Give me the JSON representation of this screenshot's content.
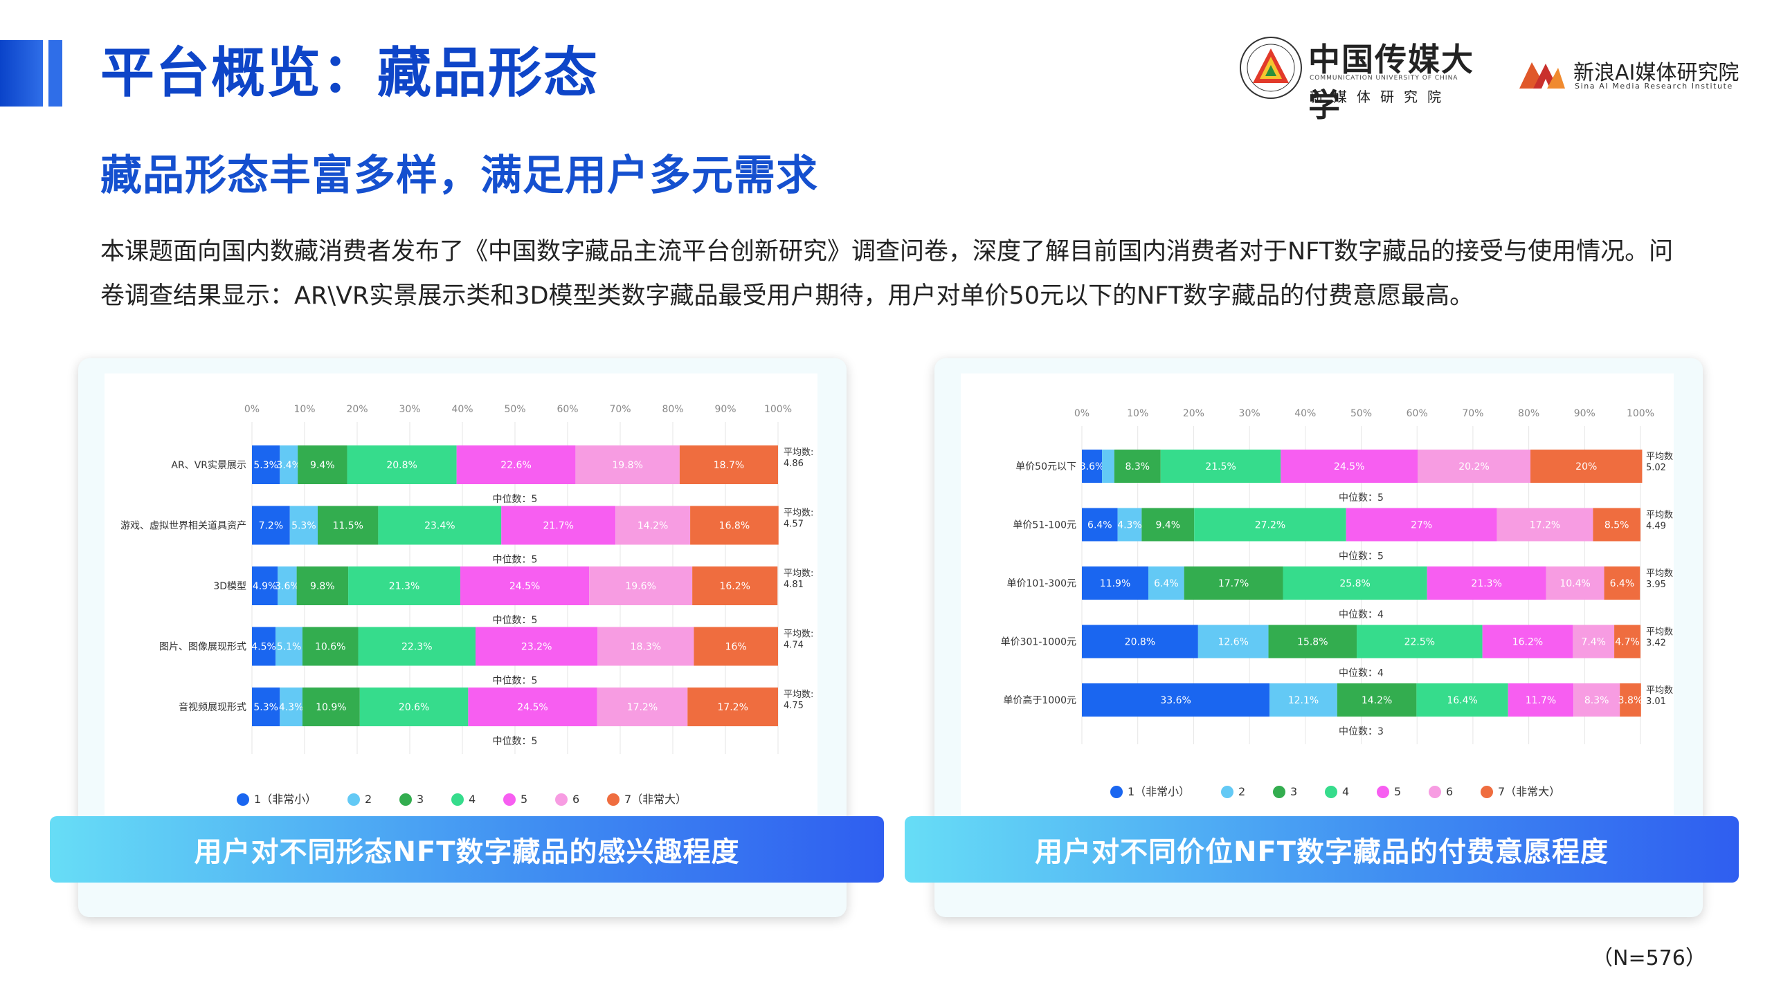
{
  "header": {
    "title": "平台概览：藏品形态",
    "logo_cuc": {
      "title": "中国传媒大学",
      "english": "COMMUNICATION UNIVERSITY OF CHINA",
      "sub": "新媒体研究院"
    },
    "logo_sina": {
      "name": "新浪AI媒体研究院",
      "english": "Sina AI Media Research Institute"
    }
  },
  "subtitle": "藏品形态丰富多样，满足用户多元需求",
  "intro": "本课题面向国内数藏消费者发布了《中国数字藏品主流平台创新研究》调查问卷，深度了解目前国内消费者对于NFT数字藏品的接受与使用情况。问卷调查结果显示：AR\\VR实景展示类和3D模型类数字藏品最受用户期待，用户对单价50元以下的NFT数字藏品的付费意愿最高。",
  "sample_note": "（N=576）",
  "colors": [
    "#1a66f0",
    "#63c9f5",
    "#33ad4f",
    "#36dc8c",
    "#f75ef1",
    "#f79ce2",
    "#ef6d3f"
  ],
  "chart_data": [
    {
      "type": "bar",
      "orientation": "horizontal",
      "stacked": true,
      "caption": "用户对不同形态NFT数字藏品的感兴趣程度",
      "x_ticks": [
        "0%",
        "10%",
        "20%",
        "30%",
        "40%",
        "50%",
        "60%",
        "70%",
        "80%",
        "90%",
        "100%"
      ],
      "xlim": [
        0,
        100
      ],
      "categories": [
        "AR、VR实景展示",
        "游戏、虚拟世界相关道具资产",
        "3D模型",
        "图片、图像展现形式",
        "音视频展现形式"
      ],
      "series": [
        {
          "name": "1（非常小）",
          "values": [
            5.3,
            7.2,
            4.9,
            4.5,
            5.3
          ]
        },
        {
          "name": "2",
          "values": [
            3.4,
            5.3,
            3.6,
            5.1,
            4.3
          ]
        },
        {
          "name": "3",
          "values": [
            9.4,
            11.5,
            9.8,
            10.6,
            10.9
          ]
        },
        {
          "name": "4",
          "values": [
            20.8,
            23.4,
            21.3,
            22.3,
            20.6
          ]
        },
        {
          "name": "5",
          "values": [
            22.6,
            21.7,
            24.5,
            23.2,
            24.5
          ]
        },
        {
          "name": "6",
          "values": [
            19.8,
            14.2,
            19.6,
            18.3,
            17.2
          ]
        },
        {
          "name": "7（非常大）",
          "values": [
            18.7,
            16.8,
            16.2,
            16,
            17.2
          ]
        }
      ],
      "value_labels": [
        [
          "5.3%",
          "3.4%",
          "9.4%",
          "20.8%",
          "22.6%",
          "19.8%",
          "18.7%"
        ],
        [
          "7.2%",
          "5.3%",
          "11.5%",
          "23.4%",
          "21.7%",
          "14.2%",
          "16.8%"
        ],
        [
          "4.9%",
          "3.6%",
          "9.8%",
          "21.3%",
          "24.5%",
          "19.6%",
          "16.2%"
        ],
        [
          "4.5%",
          "5.1%",
          "10.6%",
          "22.3%",
          "23.2%",
          "18.3%",
          "16%"
        ],
        [
          "5.3%",
          "4.3%",
          "10.9%",
          "20.6%",
          "24.5%",
          "17.2%",
          "17.2%"
        ]
      ],
      "mean_label": "平均数:",
      "means": [
        "4.86",
        "4.57",
        "4.81",
        "4.74",
        "4.75"
      ],
      "median_labels": [
        "中位数：5",
        "中位数：5",
        "中位数：5",
        "中位数：5",
        "中位数：5"
      ],
      "legend_position": "bottom",
      "grid": true
    },
    {
      "type": "bar",
      "orientation": "horizontal",
      "stacked": true,
      "caption": "用户对不同价位NFT数字藏品的付费意愿程度",
      "x_ticks": [
        "0%",
        "10%",
        "20%",
        "30%",
        "40%",
        "50%",
        "60%",
        "70%",
        "80%",
        "90%",
        "100%"
      ],
      "xlim": [
        0,
        100
      ],
      "categories": [
        "单价50元以下",
        "单价51-100元",
        "单价101-300元",
        "单价301-1000元",
        "单价高于1000元"
      ],
      "series": [
        {
          "name": "1（非常小）",
          "values": [
            3.6,
            6.4,
            11.9,
            20.8,
            33.6
          ]
        },
        {
          "name": "2",
          "values": [
            2.2,
            4.3,
            6.4,
            12.6,
            12.1
          ]
        },
        {
          "name": "3",
          "values": [
            8.3,
            9.4,
            17.7,
            15.8,
            14.2
          ]
        },
        {
          "name": "4",
          "values": [
            21.5,
            27.2,
            25.8,
            22.5,
            16.4
          ]
        },
        {
          "name": "5",
          "values": [
            24.5,
            27,
            21.3,
            16.2,
            11.7
          ]
        },
        {
          "name": "6",
          "values": [
            20.2,
            17.2,
            10.4,
            7.4,
            8.3
          ]
        },
        {
          "name": "7（非常大）",
          "values": [
            20,
            8.5,
            6.4,
            4.7,
            3.8
          ]
        }
      ],
      "value_labels": [
        [
          "3.6%",
          "",
          "8.3%",
          "21.5%",
          "24.5%",
          "20.2%",
          "20%"
        ],
        [
          "6.4%",
          "4.3%",
          "9.4%",
          "27.2%",
          "27%",
          "17.2%",
          "8.5%"
        ],
        [
          "11.9%",
          "6.4%",
          "17.7%",
          "25.8%",
          "21.3%",
          "10.4%",
          "6.4%"
        ],
        [
          "20.8%",
          "12.6%",
          "15.8%",
          "22.5%",
          "16.2%",
          "7.4%",
          "4.7%"
        ],
        [
          "33.6%",
          "12.1%",
          "14.2%",
          "16.4%",
          "11.7%",
          "8.3%",
          "3.8%"
        ]
      ],
      "mean_label": "平均数:",
      "means": [
        "5.02",
        "4.49",
        "3.95",
        "3.42",
        "3.01"
      ],
      "median_labels": [
        "中位数：5",
        "中位数：5",
        "中位数：4",
        "中位数：4",
        "中位数：3"
      ],
      "legend_position": "bottom",
      "grid": true
    }
  ]
}
